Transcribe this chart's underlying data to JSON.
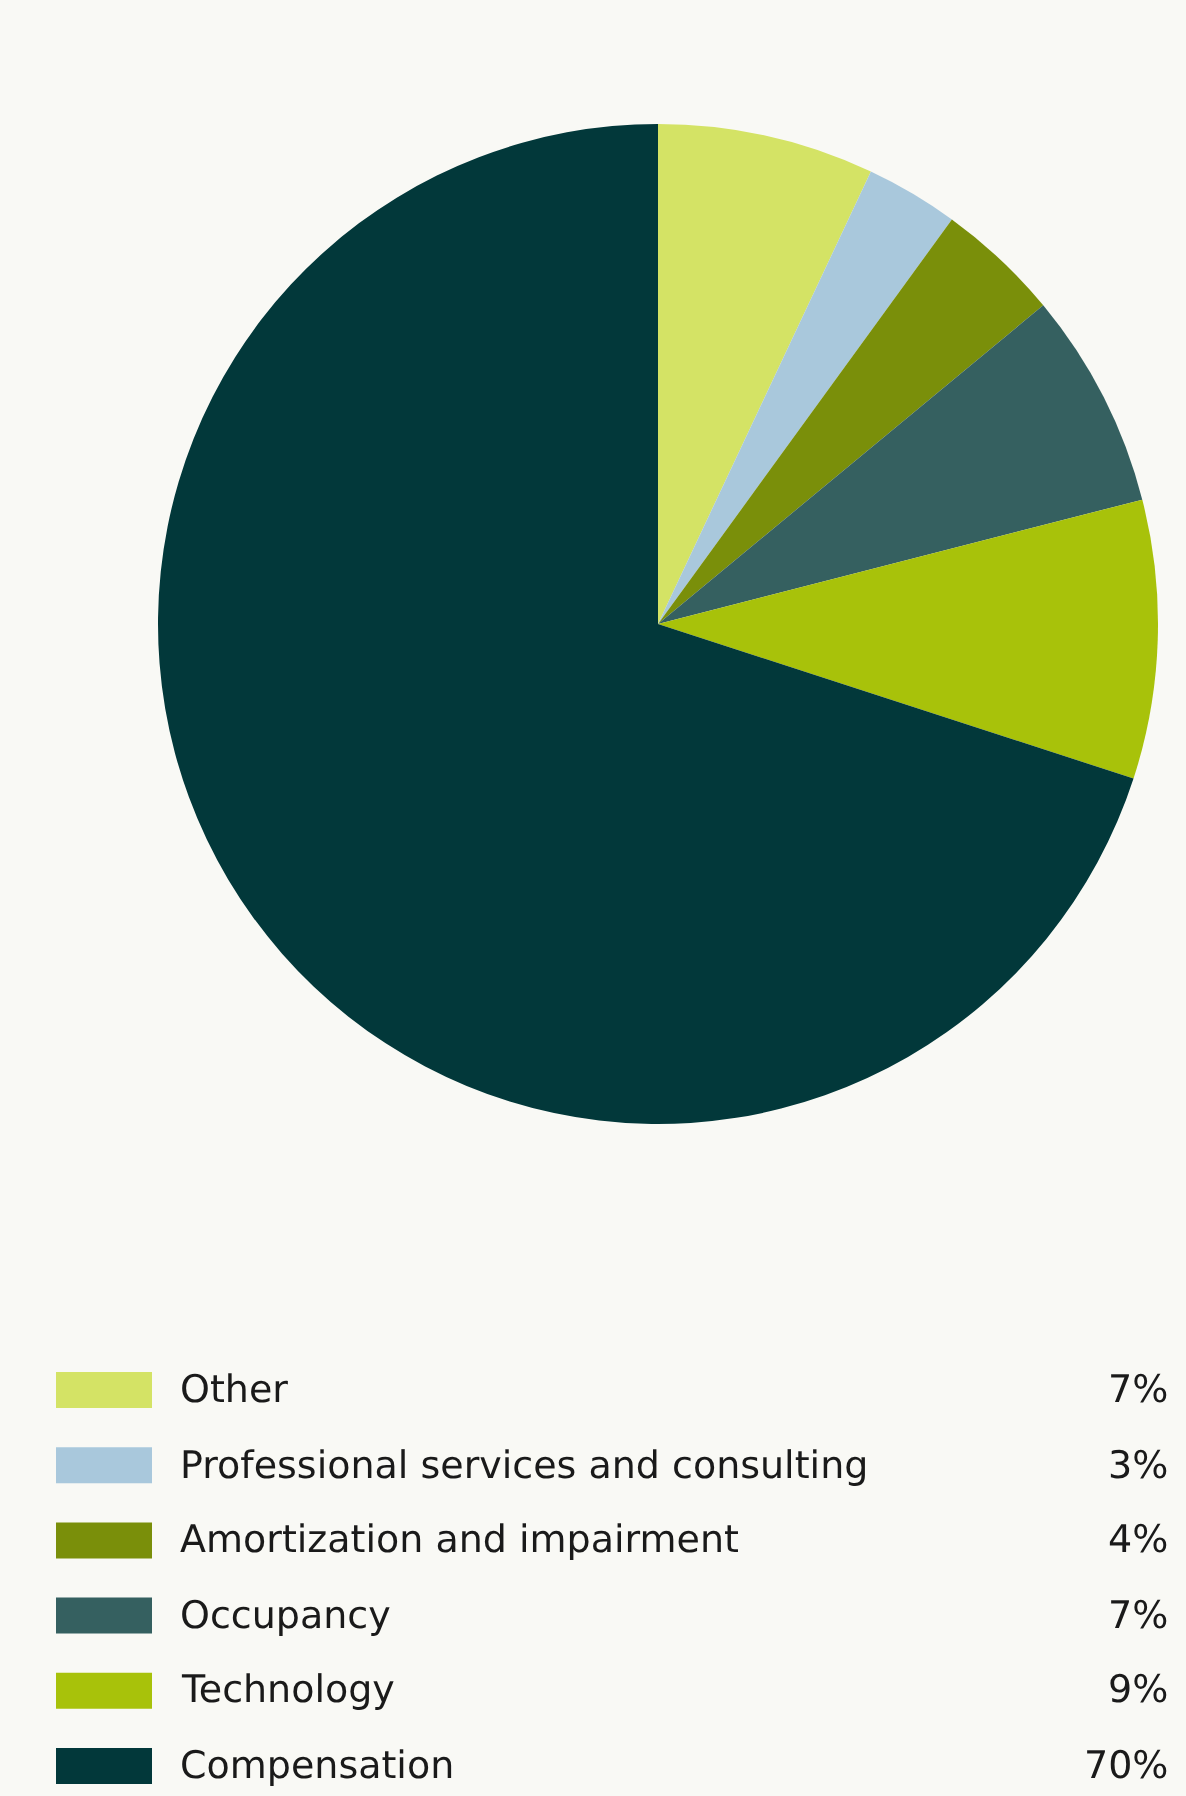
{
  "chart_data": {
    "type": "pie",
    "categories": [
      "Other",
      "Professional services and consulting",
      "Amortization and impairment",
      "Occupancy",
      "Technology",
      "Compensation"
    ],
    "values": [
      7,
      3,
      4,
      7,
      9,
      70
    ],
    "value_labels": [
      "7%",
      "3%",
      "4%",
      "7%",
      "9%",
      "70%"
    ],
    "colors": [
      "#d4e365",
      "#a9c8dc",
      "#7a8f0a",
      "#356060",
      "#a8c20a",
      "#02383a"
    ],
    "legend": "bottom"
  }
}
